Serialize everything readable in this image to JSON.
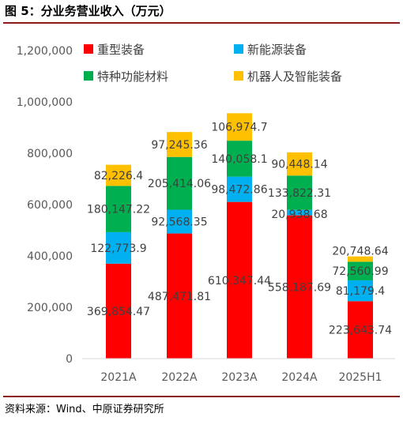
{
  "title": "图 5：分业务营业收入（万元）",
  "source": "资料来源：Wind、中原证券研究所",
  "chart_data": {
    "type": "bar",
    "stacked": true,
    "categories": [
      "2021A",
      "2022A",
      "2023A",
      "2024A",
      "2025H1"
    ],
    "series": [
      {
        "name": "重型装备",
        "color": "#ff0000",
        "values": [
          369854.47,
          487471.81,
          610347.44,
          558187.69,
          223643.74
        ],
        "labels": [
          "369,854.47",
          "487,471.81",
          "610,347.44",
          "558,187.69",
          "223,643.74"
        ]
      },
      {
        "name": "新能源装备",
        "color": "#00b0f0",
        "values": [
          122773.9,
          92568.35,
          98472.86,
          20938.68,
          81179.4
        ],
        "labels": [
          "122,773.9",
          "92,568.35",
          "98,472.86",
          "20,938.68",
          "81,179.4"
        ]
      },
      {
        "name": "特种功能材料",
        "color": "#00b050",
        "values": [
          180147.22,
          205414.06,
          140058.1,
          133822.31,
          72560.99
        ],
        "labels": [
          "180,147.22",
          "205,414.06",
          "140,058.1",
          "133,822.31",
          "72,560.99"
        ]
      },
      {
        "name": "机器人及智能装备",
        "color": "#ffc000",
        "values": [
          82226.4,
          97245.36,
          106974.7,
          90448.14,
          20748.64
        ],
        "labels": [
          "82,226.4",
          "97,245.36",
          "106,974.7",
          "90,448.14",
          "20,748.64"
        ]
      }
    ],
    "ylim": [
      0,
      1200000
    ],
    "yticks": [
      "0",
      "200,000",
      "400,000",
      "600,000",
      "800,000",
      "1,000,000",
      "1,200,000"
    ],
    "legend_position": "top",
    "grid": false
  }
}
